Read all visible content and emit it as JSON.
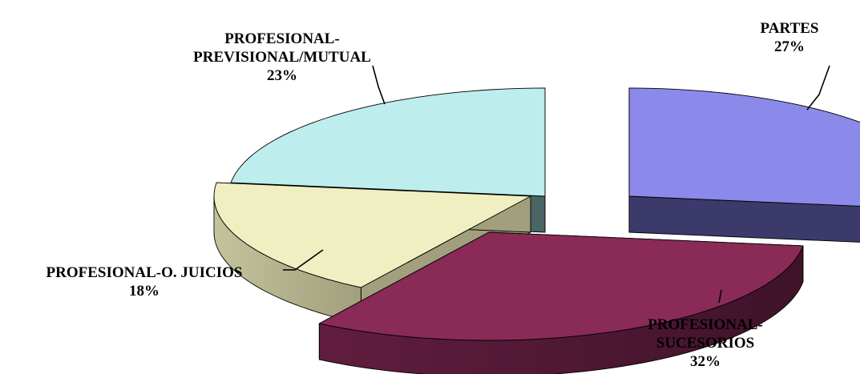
{
  "chart_data": {
    "type": "pie",
    "three_d": true,
    "exploded": true,
    "legend": "none",
    "slices": [
      {
        "label_lines": [
          "PARTES"
        ],
        "value": 27,
        "value_label": "27%",
        "color_top": "#8b89ea",
        "color_side": "#3b3a6b"
      },
      {
        "label_lines": [
          "PROFESIONAL-",
          "SUCESORIOS"
        ],
        "value": 32,
        "value_label": "32%",
        "color_top": "#8a2a57",
        "color_side": "#3f1329"
      },
      {
        "label_lines": [
          "PROFESIONAL-O. JUICIOS"
        ],
        "value": 18,
        "value_label": "18%",
        "color_top": "#efefc1",
        "color_side": "#a19f7d"
      },
      {
        "label_lines": [
          "PROFESIONAL-",
          "PREVISIONAL/MUTUAL"
        ],
        "value": 23,
        "value_label": "23%",
        "color_top": "#bdeded",
        "color_side": "#4a6464"
      }
    ]
  }
}
